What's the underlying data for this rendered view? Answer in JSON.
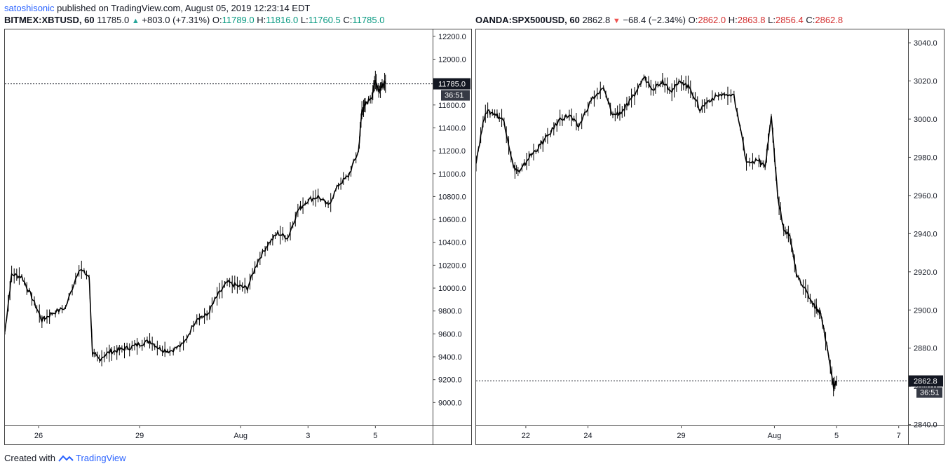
{
  "header": {
    "publisher": "satoshisonic",
    "published_text": "published on TradingView.com, August 05, 2019 12:23:14 EDT"
  },
  "footer": {
    "created_with": "Created with",
    "brand": "TradingView"
  },
  "colors": {
    "candle": "#000000",
    "up_text": "#26a69a",
    "down_text": "#ef5350",
    "price_label_bg": "#131722"
  },
  "chart_data": [
    {
      "type": "line",
      "symbol": "BITMEX:XBTUSD, 60",
      "last": "11785.0",
      "change_arrow": "▲",
      "change": "+803.0 (+7.31%)",
      "open_label": "O:",
      "open": "11789.0",
      "high_label": "H:",
      "high": "11816.0",
      "low_label": "L:",
      "low": "11760.5",
      "close_label": "C:",
      "close": "11785.0",
      "y_ticks": [
        "12200.0",
        "12000.0",
        "11800.0",
        "11600.0",
        "11400.0",
        "11200.0",
        "11000.0",
        "10800.0",
        "10600.0",
        "10400.0",
        "10200.0",
        "10000.0",
        "9800.0",
        "9600.0",
        "9400.0",
        "9200.0",
        "9000.0"
      ],
      "y_tick_values": [
        12200,
        12000,
        11800,
        11600,
        11400,
        11200,
        11000,
        10800,
        10600,
        10400,
        10200,
        10000,
        9800,
        9600,
        9400,
        9200,
        9000
      ],
      "x_ticks": [
        "26",
        "29",
        "Aug",
        "3",
        "5"
      ],
      "x_tick_values": [
        1.5,
        4.5,
        7.5,
        9.5,
        11.5
      ],
      "ylim": [
        8800,
        12260
      ],
      "xlim": [
        0.5,
        13.2
      ],
      "price_label": "11785.0",
      "countdown": "36:51",
      "price_line_value": 11785,
      "series": [
        {
          "x": [
            0.5,
            0.7,
            1.0,
            1.3,
            1.6,
            1.9,
            2.3,
            2.7,
            3.0,
            3.1,
            3.3,
            3.6,
            3.9,
            4.2,
            4.5,
            4.8,
            5.1,
            5.4,
            5.8,
            6.2,
            6.5,
            6.8,
            7.1,
            7.4,
            7.7,
            8.0,
            8.3,
            8.6,
            8.9,
            9.2,
            9.5,
            9.8,
            10.1,
            10.4,
            10.7,
            11.0,
            11.1,
            11.2,
            11.4,
            11.5,
            11.6,
            11.7,
            11.8
          ],
          "y": [
            9620,
            10120,
            10100,
            9920,
            9720,
            9780,
            9830,
            10170,
            10100,
            9430,
            9380,
            9440,
            9460,
            9480,
            9510,
            9540,
            9470,
            9450,
            9510,
            9740,
            9760,
            9930,
            10050,
            10020,
            10000,
            10230,
            10380,
            10480,
            10440,
            10680,
            10770,
            10800,
            10720,
            10900,
            10980,
            11200,
            11550,
            11600,
            11680,
            11820,
            11720,
            11780,
            11785
          ]
        }
      ]
    },
    {
      "type": "line",
      "symbol": "OANDA:SPX500USD, 60",
      "last": "2862.8",
      "change_arrow": "▼",
      "change": "−68.4 (−2.34%)",
      "open_label": "O:",
      "open": "2862.0",
      "high_label": "H:",
      "high": "2863.8",
      "low_label": "L:",
      "low": "2856.4",
      "close_label": "C:",
      "close": "2862.8",
      "y_ticks": [
        "3040.0",
        "3020.0",
        "3000.0",
        "2980.0",
        "2960.0",
        "2940.0",
        "2920.0",
        "2900.0",
        "2880.0",
        "2860.0",
        "2840.0"
      ],
      "y_tick_values": [
        3040,
        3020,
        3000,
        2980,
        2960,
        2940,
        2920,
        2900,
        2880,
        2860,
        2840
      ],
      "x_ticks": [
        "22",
        "24",
        "29",
        "Aug",
        "5",
        "7"
      ],
      "x_tick_values": [
        1.5,
        3.5,
        6.5,
        9.5,
        11.5,
        13.5
      ],
      "ylim": [
        2839.5,
        3047
      ],
      "xlim": [
        -0.1,
        13.8
      ],
      "price_label": "2862.8",
      "countdown": "36:51",
      "price_line_value": 2862.8,
      "series": [
        {
          "x": [
            -0.1,
            0.2,
            0.5,
            0.8,
            1.1,
            1.3,
            1.6,
            1.9,
            2.2,
            2.6,
            2.9,
            3.2,
            3.6,
            4.0,
            4.3,
            4.6,
            4.9,
            5.3,
            5.6,
            5.9,
            6.2,
            6.5,
            6.8,
            7.1,
            7.4,
            7.8,
            8.2,
            8.6,
            9.0,
            9.2,
            9.4,
            9.6,
            9.8,
            10.0,
            10.2,
            10.5,
            10.8,
            11.0,
            11.2,
            11.4,
            11.5
          ],
          "y": [
            2978,
            3004,
            3003,
            2999,
            2975,
            2972,
            2980,
            2985,
            2991,
            3000,
            3002,
            2996,
            3010,
            3016,
            3002,
            3004,
            3010,
            3022,
            3016,
            3020,
            3015,
            3020,
            3016,
            3005,
            3010,
            3013,
            3012,
            2978,
            2978,
            2975,
            3002,
            2960,
            2942,
            2938,
            2920,
            2910,
            2902,
            2898,
            2880,
            2860,
            2862.8
          ]
        }
      ]
    }
  ]
}
